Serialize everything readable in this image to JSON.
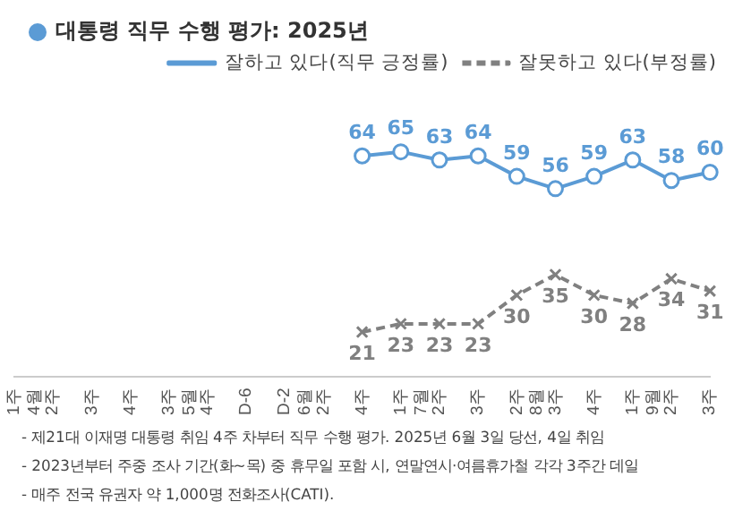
{
  "chart_data": {
    "type": "line",
    "title": "대통령 직무 수행 평가: 2025년",
    "categories": [
      "1주 4월",
      "2주",
      "3주",
      "4주",
      "3주 5월",
      "4주",
      "D-6",
      "D-2 6월",
      "2주",
      "4주",
      "1주 7월",
      "2주",
      "3주",
      "2주 8월",
      "3주",
      "4주",
      "1주 9월",
      "2주",
      "3주"
    ],
    "series": [
      {
        "name": "잘하고 있다(직무 긍정률)",
        "color": "#5b9bd5",
        "marker": "circle",
        "line_style": "solid",
        "values": [
          null,
          null,
          null,
          null,
          null,
          null,
          null,
          null,
          null,
          64,
          65,
          63,
          64,
          59,
          56,
          59,
          63,
          58,
          60
        ]
      },
      {
        "name": "잘못하고 있다(부정률)",
        "color": "#808080",
        "marker": "cross",
        "line_style": "dashed",
        "values": [
          null,
          null,
          null,
          null,
          null,
          null,
          null,
          null,
          null,
          21,
          23,
          23,
          23,
          30,
          35,
          30,
          28,
          34,
          31
        ]
      }
    ],
    "tick_labels": "x",
    "grid": false,
    "legend": "top right",
    "data_labels": true,
    "annotations": [
      "- 제21대 이재명 대통령 취임 4주 차부터 직무 수행 평가. 2025년 6월 3일 당선, 4일 취임",
      "- 2023년부터 주중 조사 기간(화~목) 중 휴무일 포함 시, 연말연시·여름휴가철 각각 3주간 데일",
      "- 매주 전국 유권자 약 1,000명 전화조사(CATI)."
    ]
  }
}
